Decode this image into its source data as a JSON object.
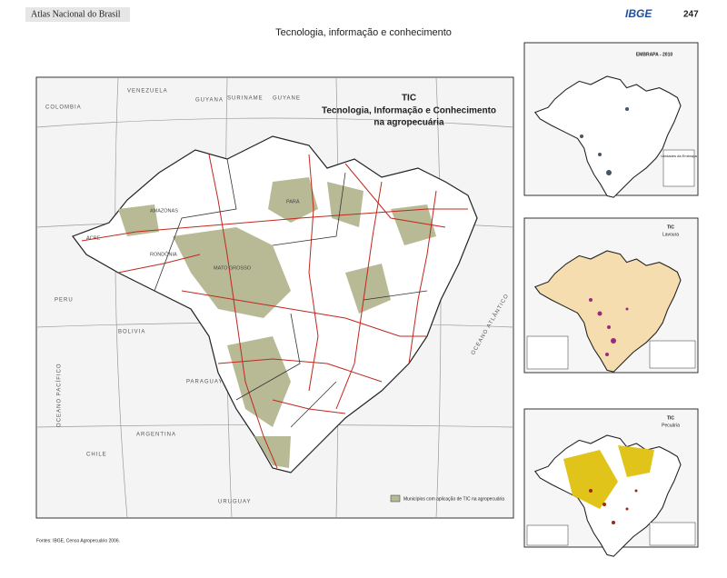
{
  "header": {
    "atlas": "Atlas Nacional do Brasil",
    "logo": "IBGE",
    "page": "247"
  },
  "title": "Tecnologia, informação e conhecimento",
  "main_map": {
    "title": "TIC",
    "subtitle_1": "Tecnologia, Informação e Conhecimento",
    "subtitle_2": "na agropecuária",
    "legend": "Municípios com aplicação de TIC na agropecuária",
    "countries": [
      "VENEZUELA",
      "COLOMBIA",
      "GUYANA",
      "SURINAME",
      "GUYANE",
      "PERU",
      "BOLIVIA",
      "PARAGUAY",
      "ARGENTINA",
      "URUGUAY",
      "CHILE"
    ],
    "oceans": [
      "OCEANO PACÍFICO",
      "OCEANO ATLÂNTICO"
    ],
    "states": [
      "AMAZONAS",
      "PARÁ",
      "MATO GROSSO",
      "ACRE",
      "RONDÔNIA"
    ]
  },
  "small_maps": [
    {
      "title": "EMBRAPA - 2010",
      "legend": "Unidades da Embrapa"
    },
    {
      "title": "TIC",
      "subtitle": "Lavoura"
    },
    {
      "title": "TIC",
      "subtitle": "Pecuária"
    }
  ],
  "footer": "Fontes: IBGE, Censo Agropecuário 2006."
}
